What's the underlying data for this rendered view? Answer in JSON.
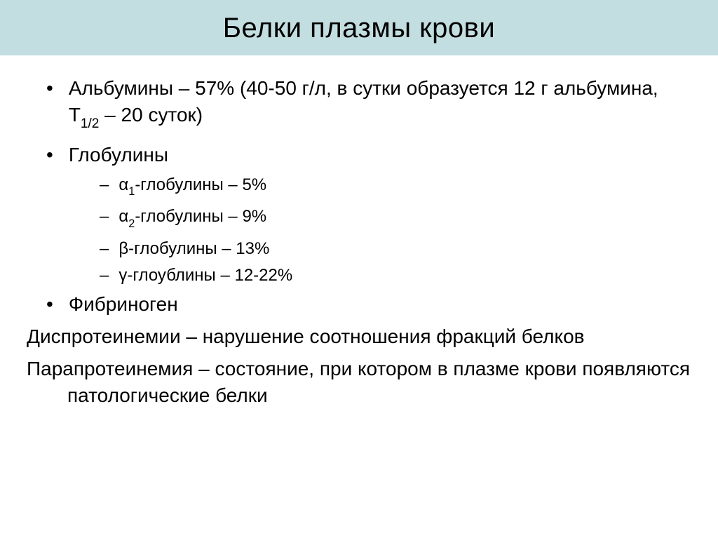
{
  "slide": {
    "title": "Белки плазмы крови",
    "title_bg_color": "#c3dee1",
    "title_fontsize": 40,
    "body_fontsize_l1": 28,
    "body_fontsize_l2": 24,
    "text_color": "#000000",
    "background_color": "#ffffff",
    "bullets": [
      {
        "level": 1,
        "text_pre": "Альбумины – 57% (40-50 г/л, в сутки образуется 12 г альбумина, Т",
        "sub": "1/2",
        "text_post": " – 20 суток)"
      },
      {
        "level": 1,
        "text": "Глобулины"
      },
      {
        "level": 2,
        "text_pre": "α",
        "sub": "1",
        "text_post": "-глобулины – 5%"
      },
      {
        "level": 2,
        "text_pre": "α",
        "sub": "2",
        "text_post": "-глобулины – 9%"
      },
      {
        "level": 2,
        "text": "β-глобулины – 13%"
      },
      {
        "level": 2,
        "text": "γ-глоублины – 12-22%"
      },
      {
        "level": 1,
        "text": "Фибриноген"
      }
    ],
    "paragraphs": [
      "Диспротеинемии – нарушение соотношения фракций белков",
      "Парапротеинемия – состояние, при котором в плазме крови появляются патологические белки"
    ]
  }
}
